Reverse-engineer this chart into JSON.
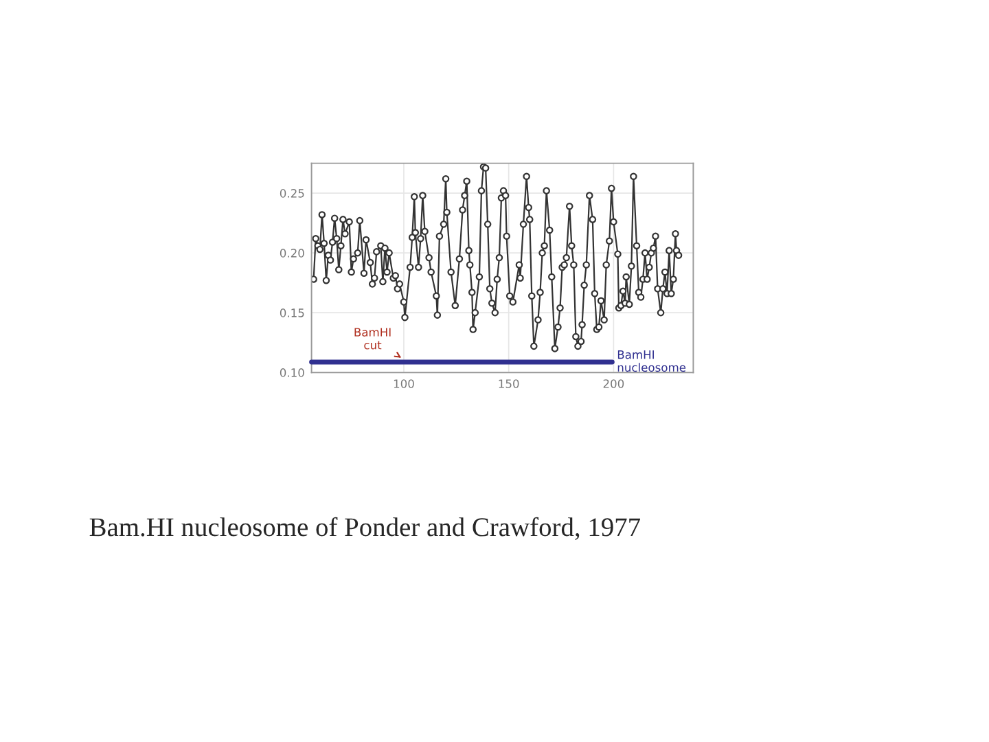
{
  "chart_data": {
    "type": "line",
    "x": [
      57,
      58,
      59,
      60,
      61,
      62,
      63,
      64,
      65,
      66,
      67,
      68,
      69,
      70,
      71,
      72,
      74,
      75,
      76,
      78,
      79,
      81,
      82,
      84,
      85,
      86,
      87,
      89,
      90,
      91,
      92,
      93,
      95,
      96,
      97,
      98,
      100,
      100.5,
      103,
      104,
      105,
      105.5,
      107,
      108,
      109,
      110,
      112,
      113,
      115.5,
      116,
      117,
      119,
      120,
      120.5,
      122.5,
      124.5,
      126.5,
      128,
      129,
      130,
      131,
      131.5,
      132.5,
      133,
      134,
      136,
      137,
      138,
      139,
      140,
      141,
      142,
      143.5,
      144.5,
      145.5,
      146.5,
      147.5,
      148.5,
      149,
      150.5,
      152,
      155,
      155.5,
      157,
      158.5,
      159.5,
      160,
      161,
      162,
      164,
      165,
      166,
      167,
      168,
      169.5,
      170.5,
      172,
      173.5,
      174.5,
      175.5,
      176.5,
      177.5,
      179,
      180,
      181,
      182,
      183,
      184.5,
      185,
      186,
      187,
      188.5,
      190,
      191,
      192,
      193,
      194,
      195.5,
      196.5,
      198,
      199,
      200,
      202,
      202.5,
      203.5,
      204.5,
      205.5,
      206,
      207.5,
      208.5,
      209.5,
      211,
      212,
      213,
      214,
      215,
      216,
      217,
      218,
      219,
      220,
      221,
      222.5,
      223.5,
      224.5,
      225.5,
      226.5,
      227.5,
      228.5,
      229.5,
      230,
      231
    ],
    "series": [
      {
        "color": "#333333",
        "values": [
          0.178,
          0.212,
          0.206,
          0.203,
          0.232,
          0.208,
          0.177,
          0.198,
          0.194,
          0.209,
          0.229,
          0.212,
          0.186,
          0.206,
          0.228,
          0.216,
          0.226,
          0.184,
          0.195,
          0.2,
          0.227,
          0.183,
          0.211,
          0.192,
          0.174,
          0.179,
          0.201,
          0.206,
          0.176,
          0.204,
          0.184,
          0.2,
          0.179,
          0.181,
          0.17,
          0.174,
          0.159,
          0.146,
          0.188,
          0.213,
          0.247,
          0.217,
          0.188,
          0.212,
          0.248,
          0.218,
          0.196,
          0.184,
          0.164,
          0.148,
          0.214,
          0.224,
          0.262,
          0.234,
          0.184,
          0.156,
          0.195,
          0.236,
          0.248,
          0.26,
          0.202,
          0.19,
          0.167,
          0.136,
          0.15,
          0.18,
          0.252,
          0.272,
          0.271,
          0.224,
          0.17,
          0.158,
          0.15,
          0.178,
          0.196,
          0.246,
          0.252,
          0.248,
          0.214,
          0.164,
          0.159,
          0.19,
          0.179,
          0.224,
          0.264,
          0.238,
          0.228,
          0.164,
          0.122,
          0.144,
          0.167,
          0.2,
          0.206,
          0.252,
          0.219,
          0.18,
          0.12,
          0.138,
          0.154,
          0.188,
          0.19,
          0.196,
          0.239,
          0.206,
          0.19,
          0.13,
          0.122,
          0.126,
          0.14,
          0.173,
          0.19,
          0.248,
          0.228,
          0.166,
          0.136,
          0.138,
          0.16,
          0.144,
          0.19,
          0.21,
          0.254,
          0.226,
          0.199,
          0.154,
          0.156,
          0.168,
          0.158,
          0.18,
          0.157,
          0.189,
          0.264,
          0.206,
          0.167,
          0.163,
          0.178,
          0.2,
          0.178,
          0.188,
          0.2,
          0.204,
          0.214,
          0.17,
          0.15,
          0.17,
          0.184,
          0.166,
          0.202,
          0.166,
          0.178,
          0.216,
          0.202,
          0.198
        ]
      }
    ],
    "xlim": [
      56,
      238
    ],
    "ylim": [
      0.1,
      0.275
    ],
    "xticks": [
      100,
      150,
      200
    ],
    "yticks": [
      {
        "value": 0.1,
        "label": "0.10"
      },
      {
        "value": 0.15,
        "label": "0.15"
      },
      {
        "value": 0.2,
        "label": "0.20"
      },
      {
        "value": 0.25,
        "label": "0.25"
      }
    ],
    "grid": true,
    "marker": "circle",
    "line_style": "solid",
    "annotations": [
      "BamHI\ncut",
      "BamHI\nnucleosome",
      "Bam.HI nucleosome of Ponder and Crawford, 1977"
    ]
  }
}
